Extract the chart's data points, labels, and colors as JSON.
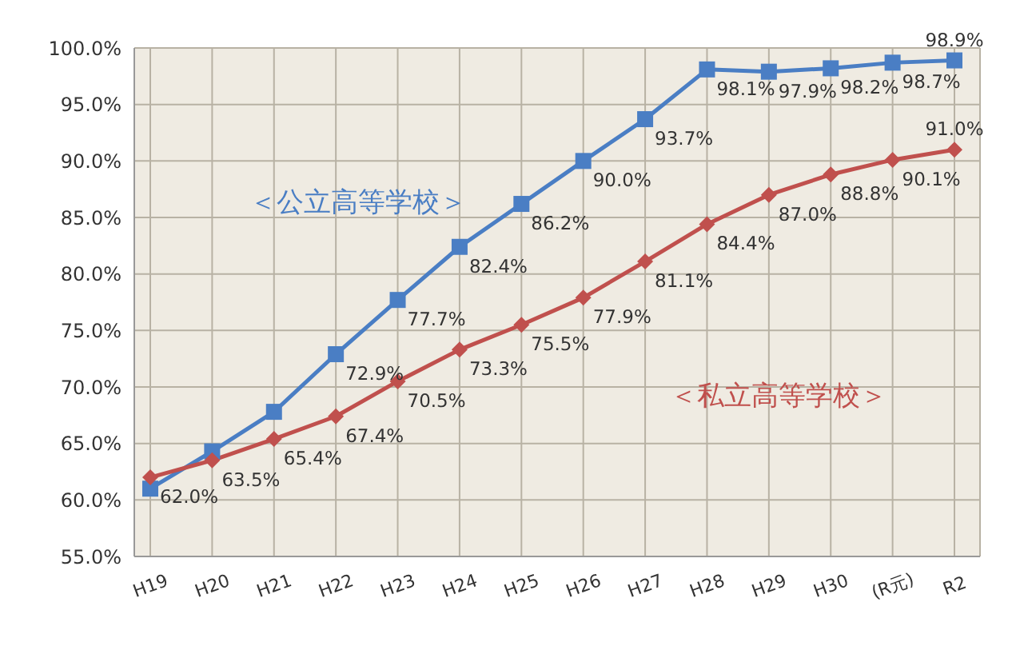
{
  "chart_data": {
    "type": "line",
    "categories": [
      "H19",
      "H20",
      "H21",
      "H22",
      "H23",
      "H24",
      "H25",
      "H26",
      "H27",
      "H28",
      "H29",
      "H30",
      "(R元)",
      "R2"
    ],
    "series": [
      {
        "name": "＜公立高等学校＞",
        "color": "#4a7ec4",
        "marker": "square",
        "values": [
          61.0,
          64.3,
          67.8,
          72.9,
          77.7,
          82.4,
          86.2,
          90.0,
          93.7,
          98.1,
          97.9,
          98.2,
          98.7,
          98.9
        ],
        "value_labels": [
          null,
          null,
          null,
          "72.9%",
          "77.7%",
          "82.4%",
          "86.2%",
          "90.0%",
          "93.7%",
          "98.1%",
          "97.9%",
          "98.2%",
          "98.7%",
          "98.9%"
        ]
      },
      {
        "name": "＜私立高等学校＞",
        "color": "#c0504d",
        "marker": "diamond",
        "values": [
          62.0,
          63.5,
          65.4,
          67.4,
          70.5,
          73.3,
          75.5,
          77.9,
          81.1,
          84.4,
          87.0,
          88.8,
          90.1,
          91.0
        ],
        "value_labels": [
          "62.0%",
          "63.5%",
          "65.4%",
          "67.4%",
          "70.5%",
          "73.3%",
          "75.5%",
          "77.9%",
          "81.1%",
          "84.4%",
          "87.0%",
          "88.8%",
          "90.1%",
          "91.0%"
        ]
      }
    ],
    "ylim": [
      55,
      100
    ],
    "yticks": [
      {
        "value": 55,
        "label": "55.0%"
      },
      {
        "value": 60,
        "label": "60.0%"
      },
      {
        "value": 65,
        "label": "65.0%"
      },
      {
        "value": 70,
        "label": "70.0%"
      },
      {
        "value": 75,
        "label": "75.0%"
      },
      {
        "value": 80,
        "label": "80.0%"
      },
      {
        "value": 85,
        "label": "85.0%"
      },
      {
        "value": 90,
        "label": "90.0%"
      },
      {
        "value": 95,
        "label": "95.0%"
      },
      {
        "value": 100,
        "label": "100.0%"
      }
    ],
    "grid": true
  }
}
